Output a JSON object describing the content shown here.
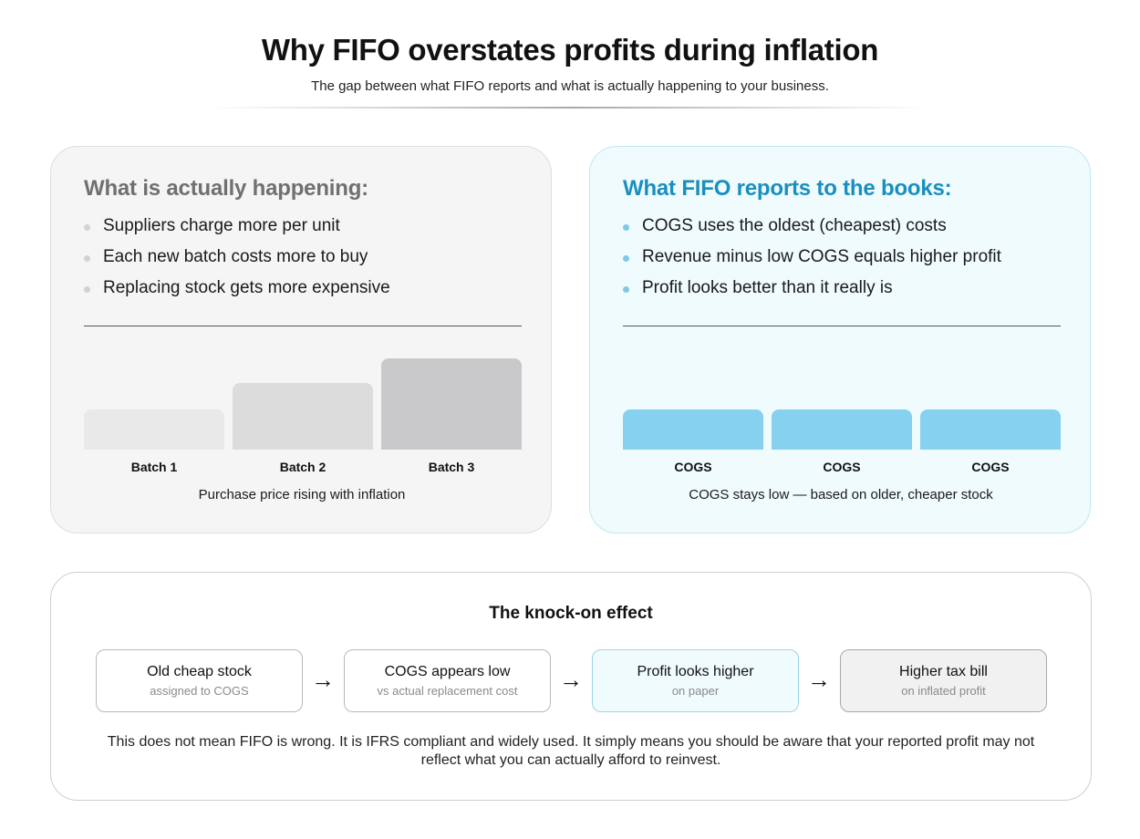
{
  "title": "Why FIFO overstates profits during inflation",
  "subtitle": "The gap between what FIFO reports and what is actually happening to your business.",
  "left_panel": {
    "heading": "What is actually happening:",
    "bullets": [
      "Suppliers charge more per unit",
      "Each new batch costs more to buy",
      "Replacing stock gets more expensive"
    ],
    "caption": "Purchase price rising with inflation"
  },
  "right_panel": {
    "heading": "What FIFO reports to the books:",
    "bullets": [
      "COGS uses the oldest (cheapest) costs",
      "Revenue minus low COGS equals higher profit",
      "Profit looks better than it really is"
    ],
    "caption": "COGS stays low — based on older, cheaper stock"
  },
  "chart_data": [
    {
      "type": "bar",
      "categories": [
        "Batch 1",
        "Batch 2",
        "Batch 3"
      ],
      "values": [
        44,
        73,
        100
      ],
      "colors": [
        "#e9e9e9",
        "#dcdcdc",
        "#c9c9cb"
      ],
      "ylim": [
        0,
        100
      ]
    },
    {
      "type": "bar",
      "categories": [
        "COGS",
        "COGS",
        "COGS"
      ],
      "values": [
        44,
        44,
        44
      ],
      "colors": [
        "#86d0f0",
        "#86d0f0",
        "#86d0f0"
      ],
      "ylim": [
        0,
        100
      ]
    }
  ],
  "knock_on": {
    "title": "The knock-on effect",
    "steps": [
      {
        "main": "Old cheap stock",
        "sub": "assigned to COGS"
      },
      {
        "main": "COGS appears low",
        "sub": "vs actual replacement cost"
      },
      {
        "main": "Profit looks higher",
        "sub": "on paper"
      },
      {
        "main": "Higher tax bill",
        "sub": "on inflated profit"
      }
    ],
    "arrow": "→",
    "footnote": "This does not mean FIFO is wrong. It is IFRS compliant and widely used. It simply means you should be aware that your reported profit may not reflect what you can actually afford to reinvest."
  }
}
